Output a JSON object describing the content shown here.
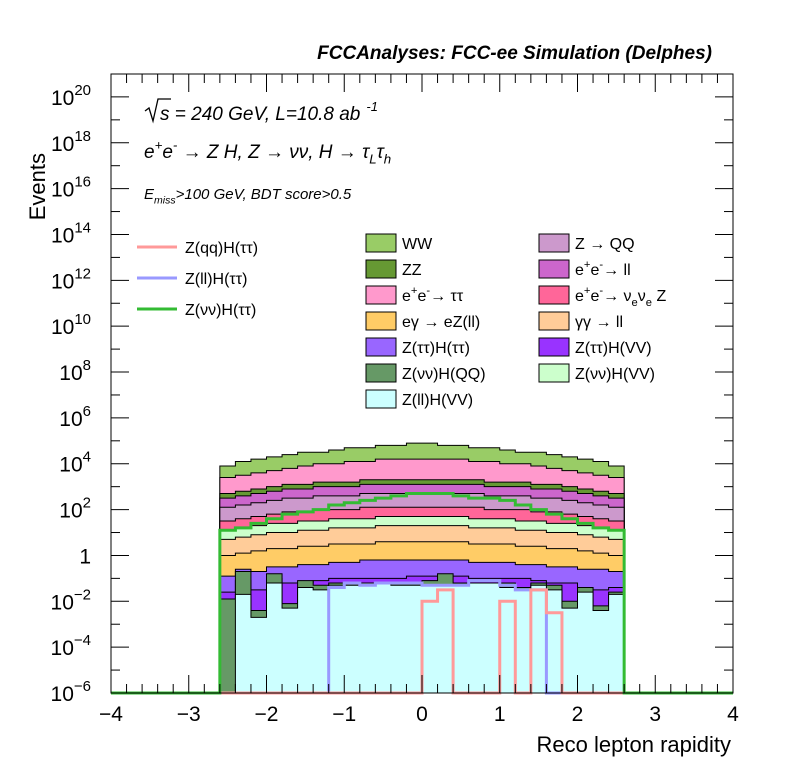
{
  "chart_data": {
    "type": "histogram-stacked",
    "title": "FCCAnalyses: FCC-ee Simulation (Delphes)",
    "xlabel": "Reco lepton rapidity",
    "ylabel": "Events",
    "xlim": [
      -4,
      4
    ],
    "ylim": [
      1e-06,
      1e+21
    ],
    "yscale": "log",
    "grid": false,
    "x_ticks": [
      "−4",
      "−3",
      "−2",
      "−1",
      "0",
      "1",
      "2",
      "3",
      "4"
    ],
    "y_ticks": [
      {
        "exp": -6,
        "label": "10",
        "sup": "−6"
      },
      {
        "exp": -4,
        "label": "10",
        "sup": "−4"
      },
      {
        "exp": -2,
        "label": "10",
        "sup": "−2"
      },
      {
        "exp": 0,
        "label": "1",
        "sup": ""
      },
      {
        "exp": 2,
        "label": "10",
        "sup": "2"
      },
      {
        "exp": 4,
        "label": "10",
        "sup": "4"
      },
      {
        "exp": 6,
        "label": "10",
        "sup": "6"
      },
      {
        "exp": 8,
        "label": "10",
        "sup": "8"
      },
      {
        "exp": 10,
        "label": "10",
        "sup": "10"
      },
      {
        "exp": 12,
        "label": "10",
        "sup": "12"
      },
      {
        "exp": 14,
        "label": "10",
        "sup": "14"
      },
      {
        "exp": 16,
        "label": "10",
        "sup": "16"
      },
      {
        "exp": 18,
        "label": "10",
        "sup": "18"
      },
      {
        "exp": 20,
        "label": "10",
        "sup": "20"
      }
    ],
    "annotations": {
      "energy": {
        "root": "s",
        "text": " = 240 GeV, L=10.8 ab",
        "sup": "-1"
      },
      "process": [
        {
          "t": "e",
          "sup": "+"
        },
        {
          "t": "e",
          "sup": "-"
        },
        {
          "t": " → Z H, Z  → νν, H  → τ"
        },
        {
          "t": "",
          "sub": "L"
        },
        {
          "t": "τ"
        },
        {
          "t": "",
          "sub": "h"
        }
      ],
      "cut": [
        {
          "t": "E"
        },
        {
          "t": "",
          "sub": "miss"
        },
        {
          "t": ">100 GeV, BDT score>0.5"
        }
      ]
    },
    "legend_placement": "upper-left (signal lines) and upper-center (backgrounds)",
    "signal_legend": [
      {
        "text": "Z(qq)H(ττ)",
        "color": "#ff9999"
      },
      {
        "text": "Z(ll)H(ττ)",
        "color": "#9999ff"
      },
      {
        "text": "Z(νν)H(ττ)",
        "color": "#33bb33"
      }
    ],
    "background_legend": [
      [
        {
          "t": "WW"
        }
      ],
      [
        {
          "t": "Z → QQ"
        }
      ],
      [
        {
          "t": "ZZ"
        }
      ],
      [
        {
          "t": "e"
        },
        {
          "t": "",
          "sup": "+"
        },
        {
          "t": "e"
        },
        {
          "t": "",
          "sup": "-"
        },
        {
          "t": "→ ll"
        }
      ],
      [
        {
          "t": "e"
        },
        {
          "t": "",
          "sup": "+"
        },
        {
          "t": "e"
        },
        {
          "t": "",
          "sup": "-"
        },
        {
          "t": "→ ττ"
        }
      ],
      [
        {
          "t": "e"
        },
        {
          "t": "",
          "sup": "+"
        },
        {
          "t": "e"
        },
        {
          "t": "",
          "sup": "-"
        },
        {
          "t": "→ ν"
        },
        {
          "t": "",
          "sub": "e"
        },
        {
          "t": "ν"
        },
        {
          "t": "",
          "sub": "e"
        },
        {
          "t": " Z"
        }
      ],
      [
        {
          "t": "eγ  → eZ(ll)"
        }
      ],
      [
        {
          "t": "γγ  → ll"
        }
      ],
      [
        {
          "t": "Z(ττ)H(ττ)"
        }
      ],
      [
        {
          "t": "Z(ττ)H(VV)"
        }
      ],
      [
        {
          "t": "Z(νν)H(QQ)"
        }
      ],
      [
        {
          "t": "Z(νν)H(VV)"
        }
      ],
      [
        {
          "t": "Z(ll)H(VV)"
        }
      ]
    ],
    "x_bin_edges": [
      -2.6,
      -2.4,
      -2.2,
      -2.0,
      -1.8,
      -1.6,
      -1.4,
      -1.2,
      -1.0,
      -0.8,
      -0.6,
      -0.4,
      -0.2,
      0.0,
      0.2,
      0.4,
      0.6,
      0.8,
      1.0,
      1.2,
      1.4,
      1.6,
      1.8,
      2.0,
      2.2,
      2.4,
      2.6
    ],
    "stack_order_bottom_to_top": [
      "Z(ll)H(VV)",
      "Z(νν)H(QQ)",
      "Z(ττ)H(VV)",
      "Z(ττ)H(ττ)",
      "eγ → eZ(ll)",
      "γγ → ll",
      "Z(νν)H(VV)",
      "e+e- → νeνe Z",
      "Z → QQ",
      "e+e- → ll",
      "ZZ",
      "e+e- → ττ",
      "WW"
    ],
    "stack_colors": [
      "#ccffff",
      "#669966",
      "#9933ff",
      "#9966ff",
      "#ffcc66",
      "#ffcc99",
      "#ccffcc",
      "#ff6699",
      "#cc99cc",
      "#cc66cc",
      "#669933",
      "#ff99cc",
      "#99cc66"
    ],
    "stack_cumulative_log10": [
      [
        -6.0,
        -1.7,
        -2.7,
        -1.2,
        -2.3,
        -1.4,
        -1.5,
        -1.3,
        -1.3,
        -1.2,
        -1.2,
        -1.3,
        -1.3,
        -1.3,
        -1.3,
        -1.3,
        -1.2,
        -1.2,
        -1.4,
        -1.5,
        -1.3,
        -1.5,
        -2.3,
        -1.6,
        -2.4,
        -1.7
      ],
      [
        -1.9,
        -0.7,
        -2.4,
        -0.8,
        -2.1,
        -1.1,
        -1.3,
        -1.2,
        -1.2,
        -1.2,
        -1.2,
        -1.2,
        -1.2,
        -1.1,
        -0.8,
        -1.2,
        -1.2,
        -1.2,
        -1.2,
        -1.4,
        -1.2,
        -1.3,
        -2.0,
        -1.4,
        -2.2,
        -1.6
      ],
      [
        -1.6,
        -1.1,
        -1.5,
        -1.0,
        -1.2,
        -1.2,
        -1.1,
        -1.0,
        -1.0,
        -1.0,
        -1.0,
        -1.0,
        -0.9,
        -0.9,
        -0.9,
        -0.9,
        -1.0,
        -1.0,
        -1.0,
        -1.0,
        -1.1,
        -1.2,
        -1.2,
        -1.4,
        -1.5,
        -1.4
      ],
      [
        -0.9,
        -0.6,
        -0.7,
        -0.5,
        -0.5,
        -0.4,
        -0.4,
        -0.3,
        -0.3,
        -0.2,
        -0.2,
        -0.2,
        -0.2,
        -0.2,
        -0.2,
        -0.2,
        -0.3,
        -0.3,
        -0.3,
        -0.4,
        -0.4,
        -0.5,
        -0.5,
        -0.6,
        -0.6,
        -0.7
      ],
      [
        0.0,
        0.1,
        0.2,
        0.3,
        0.3,
        0.4,
        0.4,
        0.5,
        0.5,
        0.5,
        0.6,
        0.6,
        0.6,
        0.6,
        0.6,
        0.6,
        0.5,
        0.5,
        0.5,
        0.4,
        0.4,
        0.3,
        0.3,
        0.2,
        0.1,
        0.0
      ],
      [
        0.7,
        0.8,
        0.9,
        1.0,
        1.0,
        1.1,
        1.1,
        1.2,
        1.2,
        1.2,
        1.3,
        1.3,
        1.3,
        1.3,
        1.3,
        1.3,
        1.2,
        1.2,
        1.2,
        1.1,
        1.1,
        1.0,
        1.0,
        0.9,
        0.8,
        0.7
      ],
      [
        1.1,
        1.2,
        1.3,
        1.4,
        1.4,
        1.5,
        1.5,
        1.6,
        1.6,
        1.6,
        1.7,
        1.7,
        1.7,
        1.7,
        1.7,
        1.7,
        1.6,
        1.6,
        1.6,
        1.5,
        1.5,
        1.4,
        1.4,
        1.3,
        1.2,
        1.1
      ],
      [
        1.5,
        1.6,
        1.7,
        1.8,
        1.9,
        1.9,
        2.0,
        2.0,
        2.0,
        2.1,
        2.1,
        2.1,
        2.1,
        2.1,
        2.1,
        2.1,
        2.1,
        2.0,
        2.0,
        2.0,
        1.9,
        1.9,
        1.8,
        1.7,
        1.6,
        1.5
      ],
      [
        2.1,
        2.2,
        2.3,
        2.4,
        2.5,
        2.5,
        2.6,
        2.6,
        2.6,
        2.7,
        2.7,
        2.7,
        2.7,
        2.7,
        2.7,
        2.7,
        2.7,
        2.6,
        2.6,
        2.6,
        2.5,
        2.5,
        2.4,
        2.3,
        2.2,
        2.1
      ],
      [
        2.5,
        2.6,
        2.7,
        2.8,
        2.9,
        2.9,
        3.0,
        3.0,
        3.0,
        3.1,
        3.1,
        3.1,
        3.1,
        3.1,
        3.1,
        3.1,
        3.1,
        3.0,
        3.0,
        3.0,
        2.9,
        2.9,
        2.8,
        2.7,
        2.6,
        2.5
      ],
      [
        2.7,
        2.8,
        2.9,
        3.0,
        3.1,
        3.1,
        3.2,
        3.2,
        3.2,
        3.3,
        3.3,
        3.3,
        3.3,
        3.3,
        3.3,
        3.3,
        3.3,
        3.2,
        3.2,
        3.2,
        3.1,
        3.1,
        3.0,
        2.9,
        2.8,
        2.7
      ],
      [
        3.4,
        3.5,
        3.6,
        3.7,
        3.8,
        3.9,
        4.0,
        4.0,
        4.1,
        4.1,
        4.2,
        4.2,
        4.2,
        4.2,
        4.2,
        4.2,
        4.1,
        4.1,
        4.0,
        4.0,
        3.9,
        3.8,
        3.7,
        3.6,
        3.5,
        3.4
      ],
      [
        3.9,
        4.1,
        4.2,
        4.3,
        4.4,
        4.5,
        4.5,
        4.6,
        4.7,
        4.7,
        4.8,
        4.8,
        4.9,
        4.9,
        4.8,
        4.8,
        4.7,
        4.7,
        4.6,
        4.5,
        4.5,
        4.4,
        4.3,
        4.2,
        4.1,
        3.9
      ]
    ],
    "signal_log10": {
      "Z(qq)H(ττ)": [
        -9,
        -9,
        -9,
        -9,
        -9,
        -9,
        -9,
        -9,
        -9,
        -9,
        -9,
        -9,
        -9,
        -2.0,
        -1.5,
        -9,
        -9,
        -9,
        -2.0,
        -9,
        -1.5,
        -2.5,
        -9,
        -9,
        -9,
        -9
      ],
      "Z(ll)H(ττ)": [
        -9,
        -9,
        -9,
        -9,
        -9,
        -9,
        -9,
        -1.4,
        -1.2,
        -1.3,
        -1.2,
        -1.2,
        -1.2,
        -1.3,
        -1.3,
        -1.3,
        -1.1,
        -1.1,
        -1.3,
        -1.5,
        -1.5,
        -9,
        -9,
        -9,
        -9,
        -9
      ],
      "Z(νν)H(ττ)": [
        1.1,
        1.2,
        1.4,
        1.6,
        1.8,
        1.9,
        2.0,
        2.2,
        2.3,
        2.4,
        2.5,
        2.6,
        2.7,
        2.7,
        2.7,
        2.6,
        2.5,
        2.5,
        2.4,
        2.2,
        2.0,
        1.8,
        1.6,
        1.4,
        1.2,
        1.1
      ]
    }
  }
}
